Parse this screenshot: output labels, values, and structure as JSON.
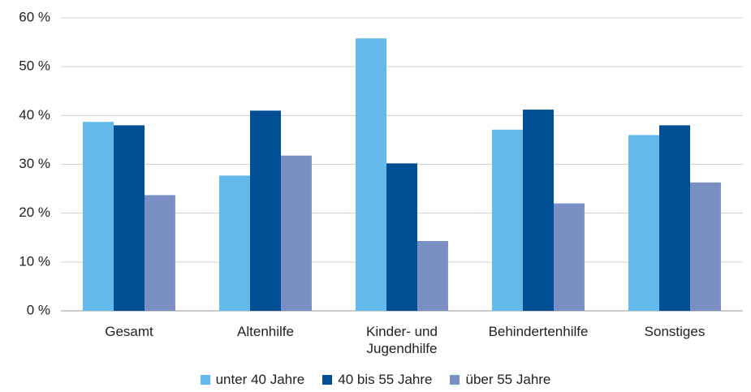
{
  "chart_data": {
    "type": "bar",
    "categories": [
      "Gesamt",
      "Altenhilfe",
      "Kinder- und Jugendhilfe",
      "Behindertenhilfe",
      "Sonstiges"
    ],
    "series": [
      {
        "name": "unter 40 Jahre",
        "color": "#63b9e9",
        "values": [
          38.7,
          27.7,
          55.8,
          37.1,
          36.0
        ]
      },
      {
        "name": "40 bis 55 Jahre",
        "color": "#004f95",
        "values": [
          38.0,
          41.0,
          30.2,
          41.2,
          38.0
        ]
      },
      {
        "name": "über 55 Jahre",
        "color": "#7a8fc4",
        "values": [
          23.7,
          31.8,
          14.3,
          22.0,
          26.3
        ]
      }
    ],
    "ylim": [
      0,
      60
    ],
    "yticks": [
      {
        "value": 0,
        "label": "0 %"
      },
      {
        "value": 10,
        "label": "10 %"
      },
      {
        "value": 20,
        "label": "20 %"
      },
      {
        "value": 30,
        "label": "30 %"
      },
      {
        "value": 40,
        "label": "40 %"
      },
      {
        "value": 50,
        "label": "50 %"
      },
      {
        "value": 60,
        "label": "60 %"
      }
    ],
    "grid": true,
    "legend": "bottom"
  }
}
